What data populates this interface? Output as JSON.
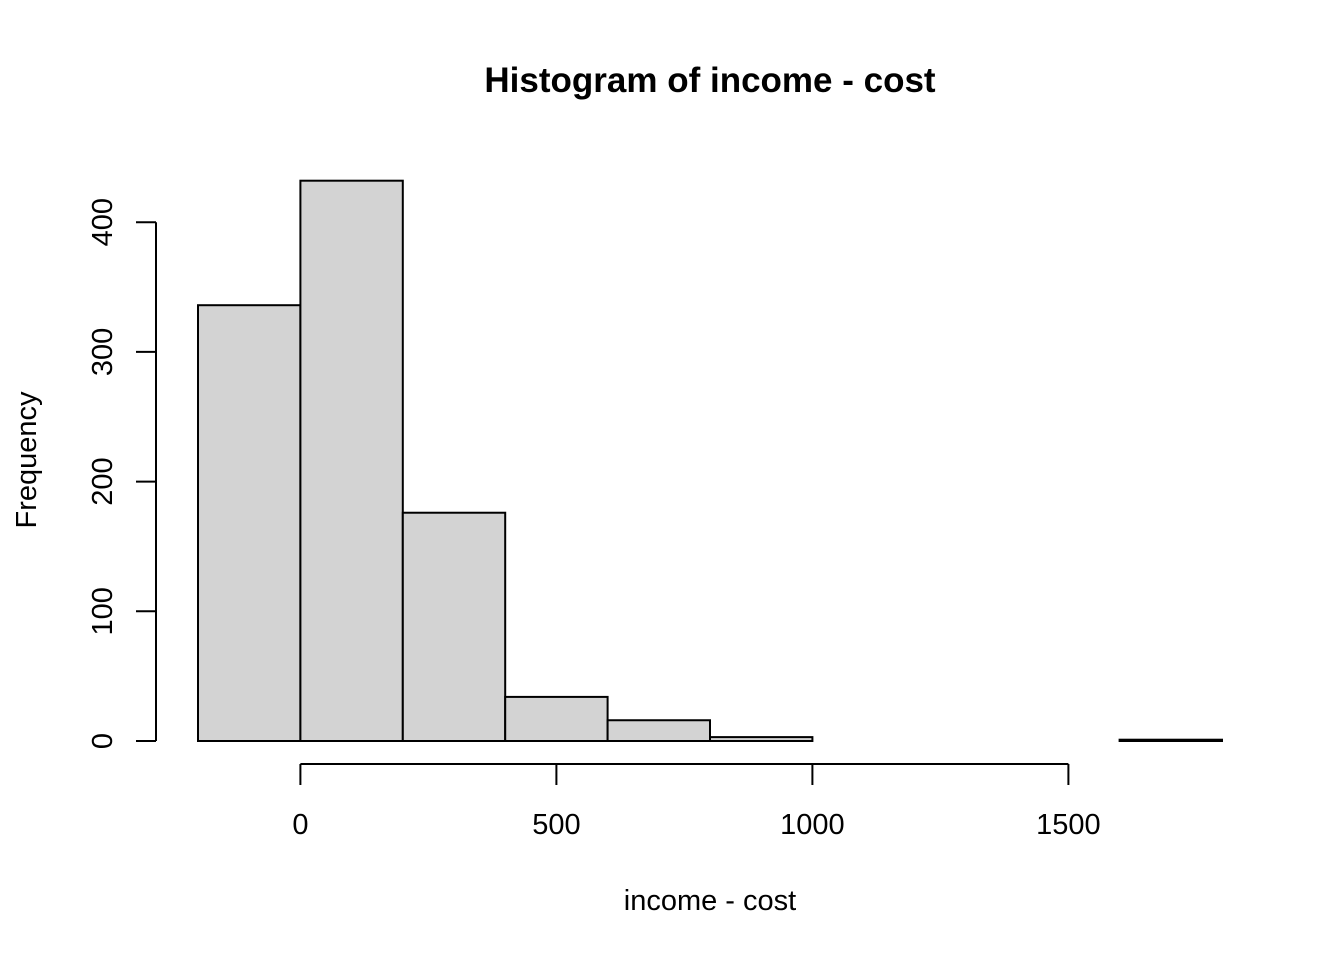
{
  "chart_data": {
    "type": "bar",
    "subtype": "histogram",
    "title": "Histogram of income - cost",
    "xlabel": "income - cost",
    "ylabel": "Frequency",
    "bins": [
      {
        "start": -200,
        "end": 0,
        "count": 336
      },
      {
        "start": 0,
        "end": 200,
        "count": 432
      },
      {
        "start": 200,
        "end": 400,
        "count": 176
      },
      {
        "start": 400,
        "end": 600,
        "count": 34
      },
      {
        "start": 600,
        "end": 800,
        "count": 16
      },
      {
        "start": 800,
        "end": 1000,
        "count": 3
      },
      {
        "start": 1000,
        "end": 1200,
        "count": 0
      },
      {
        "start": 1200,
        "end": 1400,
        "count": 0
      },
      {
        "start": 1400,
        "end": 1600,
        "count": 0
      },
      {
        "start": 1600,
        "end": 1800,
        "count": 1
      }
    ],
    "xticks": [
      0,
      500,
      1000,
      1500
    ],
    "xtick_labels": [
      "0",
      "500",
      "1000",
      "1500"
    ],
    "yticks": [
      0,
      100,
      200,
      300,
      400
    ],
    "ytick_labels": [
      "0",
      "100",
      "200",
      "300",
      "400"
    ],
    "xlim": [
      -200,
      1800
    ],
    "ylim": [
      0,
      432
    ],
    "grid": false,
    "bar_color": "#d3d3d3",
    "edge_color": "#000000"
  }
}
